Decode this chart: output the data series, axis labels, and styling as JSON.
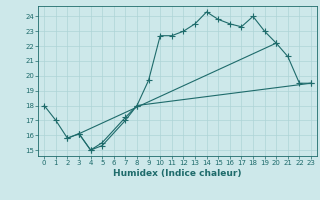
{
  "line1_x": [
    0,
    1,
    2,
    3,
    4,
    5,
    7,
    8,
    9,
    10,
    11,
    12,
    13,
    14,
    15,
    16,
    17,
    18,
    19,
    20,
    21,
    22,
    23
  ],
  "line1_y": [
    18,
    17,
    15.8,
    16.1,
    15.0,
    15.5,
    17.2,
    18.0,
    19.7,
    22.7,
    22.7,
    23.0,
    23.5,
    24.3,
    23.8,
    23.5,
    23.3,
    24.0,
    23.0,
    22.2,
    21.3,
    19.5,
    19.5
  ],
  "line2_x": [
    2,
    3,
    4,
    5,
    7,
    8,
    23
  ],
  "line2_y": [
    15.8,
    16.1,
    15.0,
    15.3,
    17.0,
    18.0,
    19.5
  ],
  "line3_x": [
    3,
    20
  ],
  "line3_y": [
    16.1,
    22.2
  ],
  "bg_color": "#cde8ea",
  "grid_color": "#aed4d7",
  "line_color": "#1e6b6b",
  "xlim": [
    -0.5,
    23.5
  ],
  "ylim": [
    14.6,
    24.7
  ],
  "yticks": [
    15,
    16,
    17,
    18,
    19,
    20,
    21,
    22,
    23,
    24
  ],
  "xticks": [
    0,
    1,
    2,
    3,
    4,
    5,
    6,
    7,
    8,
    9,
    10,
    11,
    12,
    13,
    14,
    15,
    16,
    17,
    18,
    19,
    20,
    21,
    22,
    23
  ],
  "xlabel": "Humidex (Indice chaleur)",
  "xlabel_fontsize": 6.5,
  "tick_fontsize": 5.0,
  "linewidth": 0.8,
  "markersize": 2.5
}
